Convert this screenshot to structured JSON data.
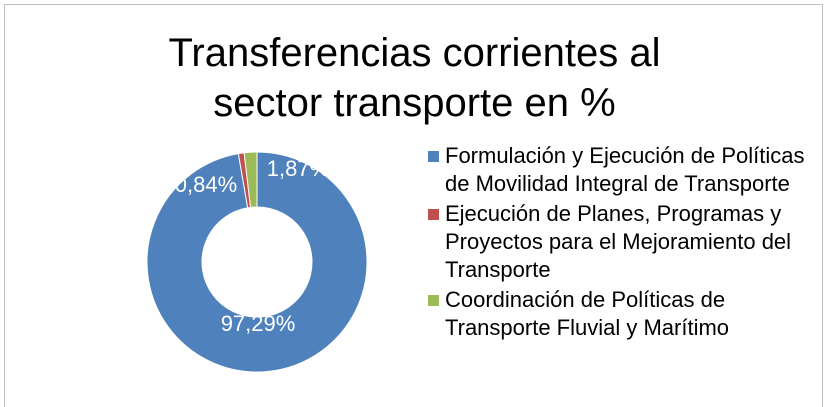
{
  "chart_data": {
    "type": "donut",
    "title": "Transferencias corrientes al sector transporte en %",
    "categories": [
      "Formulación y Ejecución de Políticas de Movilidad Integral de Transporte",
      "Ejecución de Planes, Programas y Proyectos para el Mejoramiento del Transporte",
      "Coordinación de Políticas de Transporte Fluvial y Marítimo"
    ],
    "values": [
      97.29,
      0.84,
      1.87
    ],
    "value_labels": [
      "97,29%",
      "0,84%",
      "1,87%"
    ],
    "colors": [
      "#4f81bd",
      "#c0504d",
      "#9bbb59"
    ],
    "legend": "right"
  }
}
